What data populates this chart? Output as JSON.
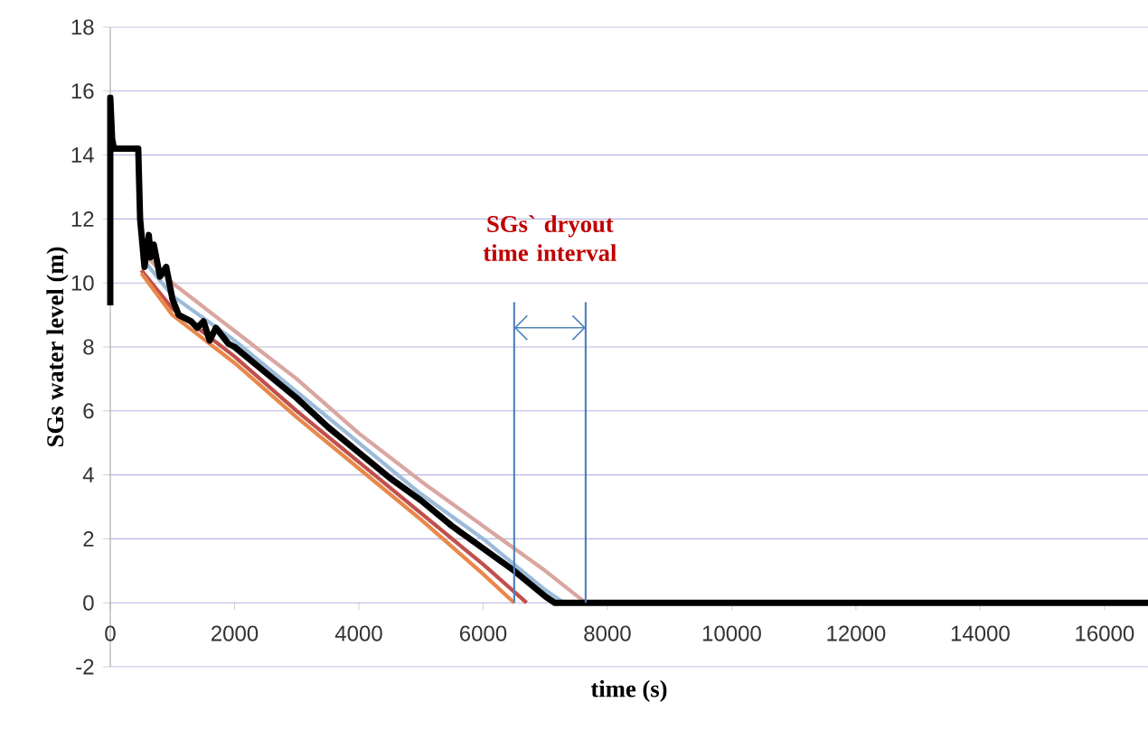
{
  "chart_data": {
    "type": "line",
    "xlabel": "time (s)",
    "ylabel": "SGs water level (m)",
    "xlim": [
      0,
      16700
    ],
    "xticks": [
      0,
      2000,
      4000,
      6000,
      8000,
      10000,
      12000,
      14000,
      16000
    ],
    "ylim": [
      -2,
      18
    ],
    "yticks": [
      -2,
      0,
      2,
      4,
      6,
      8,
      10,
      12,
      14,
      16,
      18
    ],
    "grid": "y",
    "annotations": [
      "SGs` dryout time interval"
    ],
    "ref_lines": [
      {
        "axis": "x",
        "value": 6500,
        "color": "#4f81bd"
      },
      {
        "axis": "x",
        "value": 7650,
        "color": "#4f81bd"
      }
    ],
    "series": [
      {
        "color": "#d9a6a0",
        "x": [
          500,
          1000,
          2000,
          3000,
          4000,
          5000,
          6000,
          7000,
          7650
        ],
        "values": [
          11,
          10,
          8.5,
          7,
          5.3,
          3.8,
          2.4,
          1.0,
          0
        ]
      },
      {
        "color": "#9bbbd9",
        "x": [
          500,
          1000,
          2000,
          3000,
          4000,
          5000,
          6000,
          7000,
          7300
        ],
        "values": [
          10.8,
          9.6,
          8.2,
          6.6,
          5.0,
          3.4,
          2.0,
          0.4,
          0
        ]
      },
      {
        "color": "#c0504d",
        "x": [
          500,
          1000,
          2000,
          3000,
          4000,
          5000,
          6000,
          6700
        ],
        "values": [
          10.4,
          9.2,
          7.7,
          6.0,
          4.4,
          2.8,
          1.2,
          0
        ]
      },
      {
        "color": "#e8884a",
        "x": [
          500,
          1000,
          2000,
          3000,
          4000,
          5000,
          6000,
          6500
        ],
        "values": [
          10.3,
          9.0,
          7.5,
          5.8,
          4.2,
          2.6,
          0.9,
          0
        ]
      },
      {
        "color": "#000000",
        "x": [
          0,
          0,
          30,
          60,
          100,
          450,
          480,
          550,
          620,
          650,
          700,
          800,
          900,
          1000,
          1100,
          1300,
          1400,
          1500,
          1600,
          1700,
          1900,
          2000,
          2500,
          3000,
          3500,
          4000,
          4500,
          5000,
          5500,
          6000,
          6500,
          7000,
          7150,
          8000,
          10000,
          12000,
          14000,
          16000,
          16700
        ],
        "values": [
          9.3,
          15.8,
          14.5,
          14.2,
          14.2,
          14.2,
          12,
          10.5,
          11.5,
          10.8,
          11.2,
          10.2,
          10.5,
          9.5,
          9.0,
          8.8,
          8.6,
          8.8,
          8.2,
          8.6,
          8.1,
          8.0,
          7.2,
          6.4,
          5.5,
          4.7,
          3.9,
          3.2,
          2.4,
          1.7,
          1.0,
          0.2,
          0,
          0,
          0,
          0,
          0,
          0,
          0
        ]
      }
    ]
  }
}
